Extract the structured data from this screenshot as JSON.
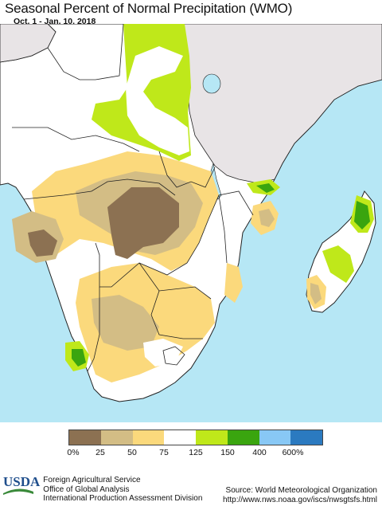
{
  "header": {
    "title": "Seasonal Percent of Normal Precipitation (WMO)",
    "date_range": "Oct. 1 - Jan. 10, 2018"
  },
  "legend": {
    "colors": [
      "#8c7152",
      "#d3bd85",
      "#fbd97c",
      "#ffffff",
      "#bfe81a",
      "#3aa50f",
      "#88c8f5",
      "#2b7ac0"
    ],
    "labels": [
      "0%",
      "25",
      "50",
      "75",
      "125",
      "150",
      "400",
      "600%"
    ]
  },
  "colors": {
    "ocean": "#b6e7f5",
    "land_other": "#e8e4e6",
    "border": "#222222"
  },
  "footer": {
    "logo_text": "USDA",
    "org_line1": "Foreign Agricultural Service",
    "org_line2": "Office of Global Analysis",
    "org_line3": "International Production Assessment Division",
    "source_line1": "Source: World Meteorological Organization",
    "source_line2": "http://www.nws.noaa.gov/iscs/nwsgtsfs.html"
  }
}
